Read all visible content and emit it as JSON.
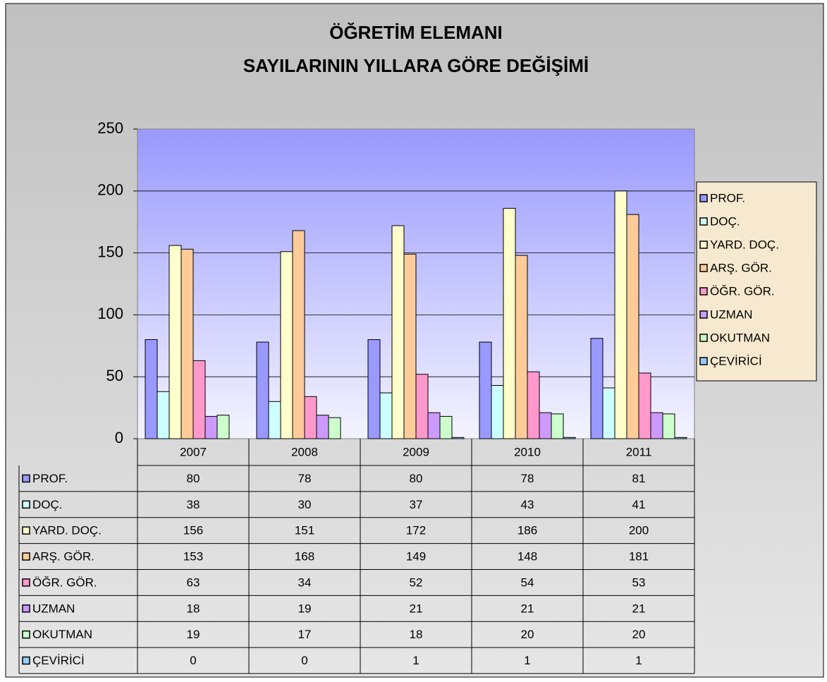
{
  "chart_data": {
    "type": "bar",
    "title": "ÖĞRETİM ELEMANI",
    "subtitle": "SAYILARININ YILLARA GÖRE DEĞİŞİMİ",
    "categories": [
      "2007",
      "2008",
      "2009",
      "2010",
      "2011"
    ],
    "series": [
      {
        "name": "PROF.",
        "color": "#9999ff",
        "values": [
          80,
          78,
          80,
          78,
          81
        ]
      },
      {
        "name": "DOÇ.",
        "color": "#ccffff",
        "values": [
          38,
          30,
          37,
          43,
          41
        ]
      },
      {
        "name": "YARD. DOÇ.",
        "color": "#ffffcc",
        "values": [
          156,
          151,
          172,
          186,
          200
        ]
      },
      {
        "name": "ARŞ. GÖR.",
        "color": "#ffcc99",
        "values": [
          153,
          168,
          149,
          148,
          181
        ]
      },
      {
        "name": "ÖĞR. GÖR.",
        "color": "#ff99cc",
        "values": [
          63,
          34,
          52,
          54,
          53
        ]
      },
      {
        "name": "UZMAN",
        "color": "#cc99ff",
        "values": [
          18,
          19,
          21,
          21,
          21
        ]
      },
      {
        "name": "OKUTMAN",
        "color": "#ccffcc",
        "values": [
          19,
          17,
          18,
          20,
          20
        ]
      },
      {
        "name": "ÇEVİRİCİ",
        "color": "#99ccff",
        "values": [
          0,
          0,
          1,
          1,
          1
        ]
      }
    ],
    "ylim": [
      0,
      250
    ],
    "yticks": [
      0,
      50,
      100,
      150,
      200,
      250
    ],
    "grid": true,
    "legend": "right",
    "data_table": true
  }
}
